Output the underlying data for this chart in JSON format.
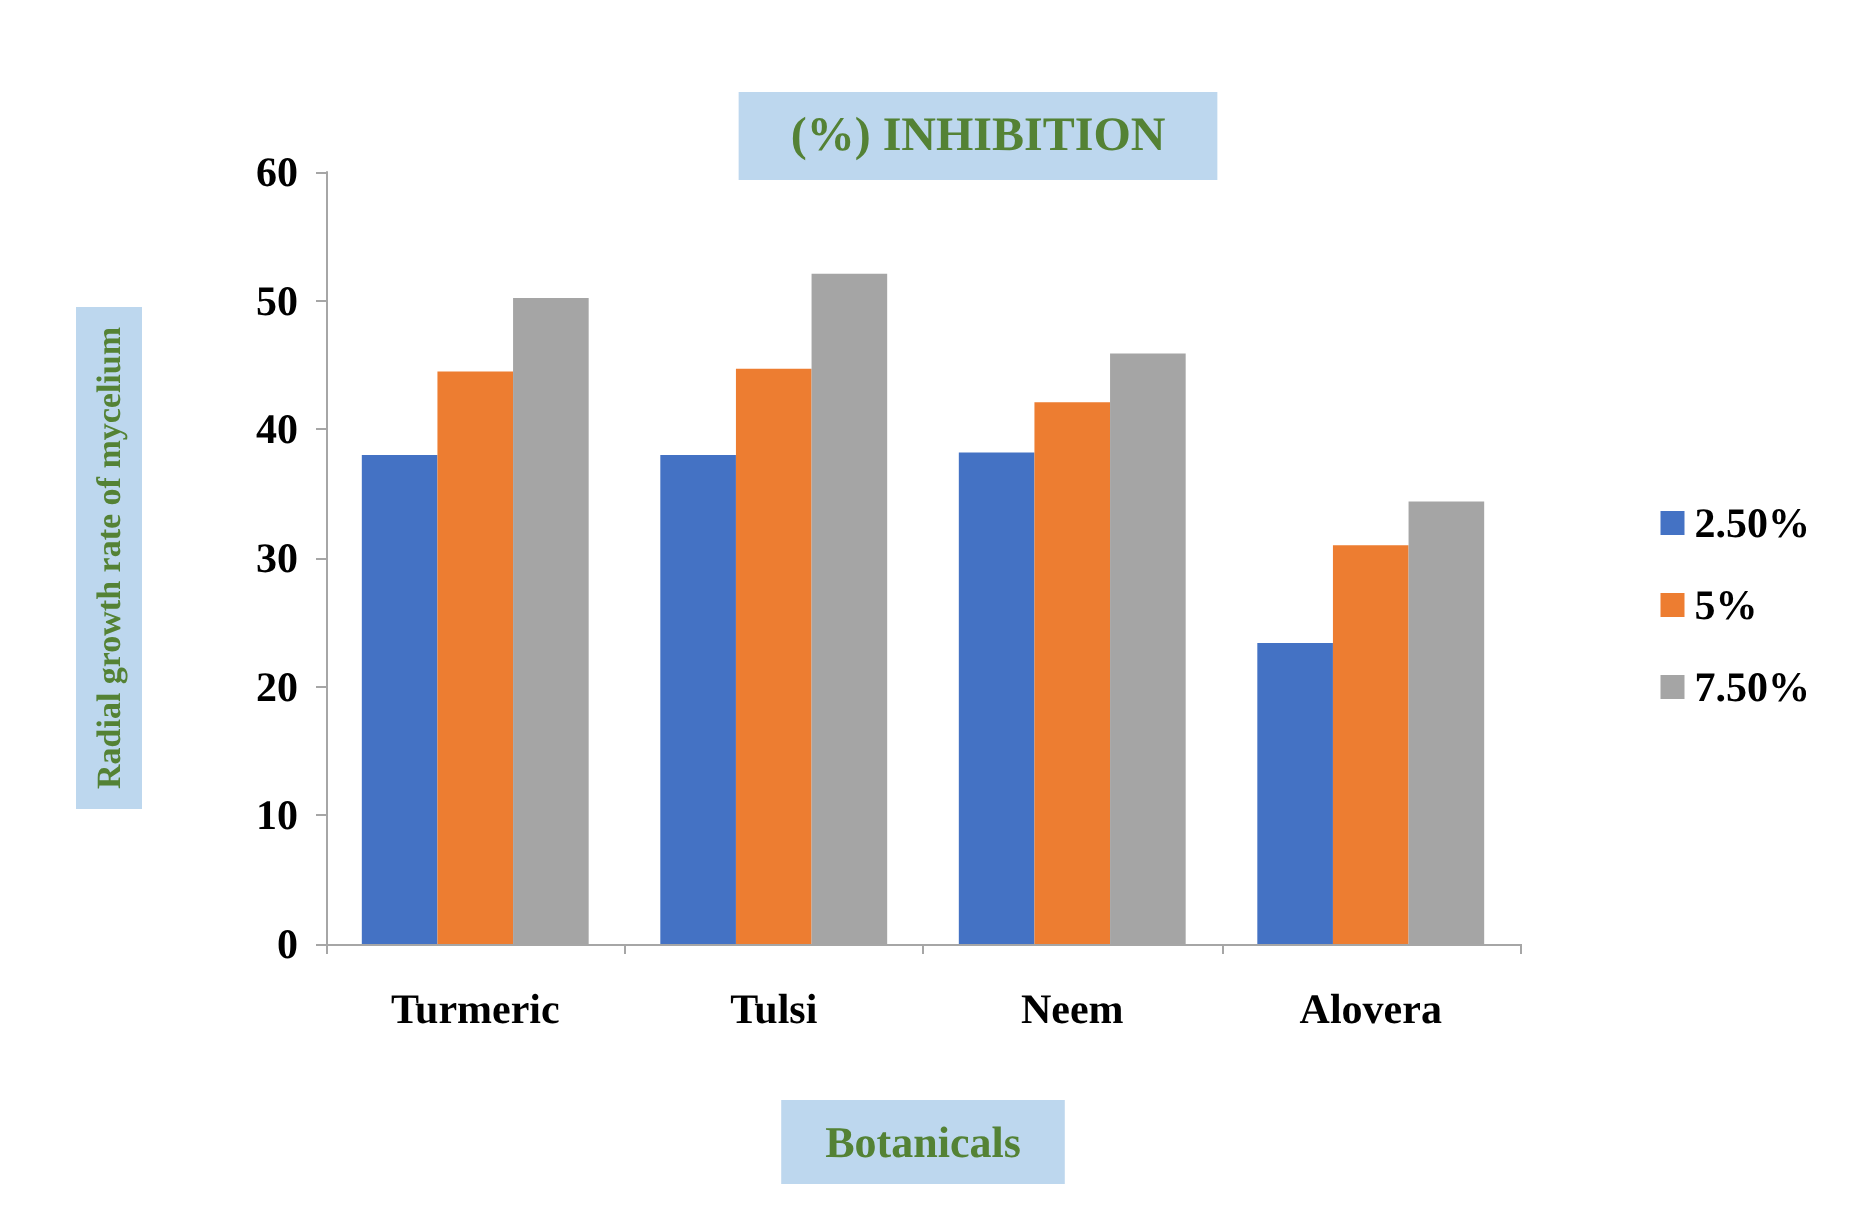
{
  "chart_data": {
    "type": "bar",
    "title": "(%) INHIBITION",
    "xlabel": "Botanicals",
    "ylabel": "Radial growth rate of mycelium",
    "categories": [
      "Turmeric",
      "Tulsi",
      "Neem",
      "Alovera"
    ],
    "series": [
      {
        "name": "2.50%",
        "color": "#4472c4",
        "values": [
          38,
          38,
          38.2,
          23.4
        ]
      },
      {
        "name": "5%",
        "color": "#ed7d31",
        "values": [
          44.5,
          44.7,
          42.1,
          31
        ]
      },
      {
        "name": "7.50%",
        "color": "#a5a5a5",
        "values": [
          50.2,
          52.1,
          45.9,
          34.4
        ]
      }
    ],
    "ylim": [
      0,
      60
    ],
    "yticks": [
      0,
      10,
      20,
      30,
      40,
      50,
      60
    ],
    "grid": false,
    "legend": "right"
  }
}
